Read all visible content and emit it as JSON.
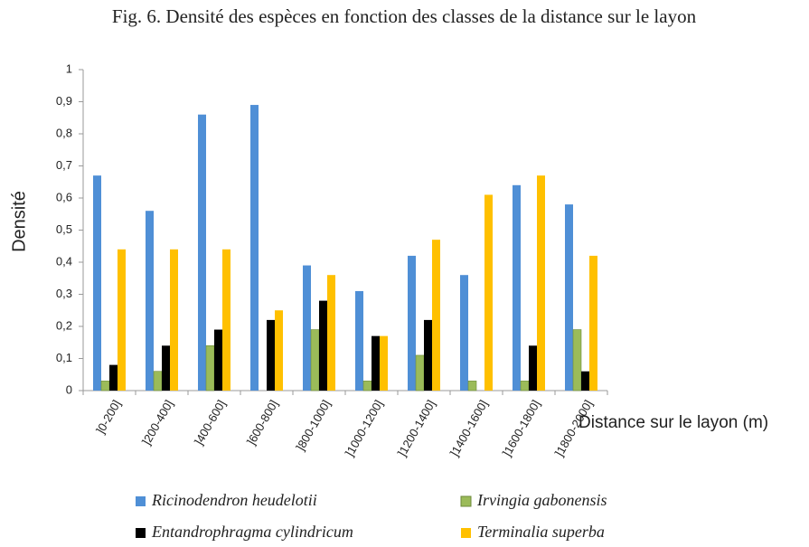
{
  "chart_data": {
    "type": "bar",
    "title": "Fig. 6. Densité des espèces en fonction des classes de la distance sur le layon",
    "y_label": "Densité",
    "x_label": "Distance sur le layon (m)",
    "categories": [
      "]0-200]",
      "]200-400]",
      "]400-600]",
      "]600-800]",
      "]800-1000]",
      "]1000-1200]",
      "]1200-1400]",
      "]1400-1600]",
      "]1600-1800]",
      "]1800-2000]"
    ],
    "series": [
      {
        "name": "Ricinodendron heudelotii",
        "color": "#4f8fd6",
        "values": [
          0.67,
          0.56,
          0.86,
          0.89,
          0.39,
          0.31,
          0.42,
          0.36,
          0.64,
          0.58
        ]
      },
      {
        "name": "Irvingia gabonensis",
        "color": "#9bbb59",
        "values": [
          0.03,
          0.06,
          0.14,
          0,
          0.19,
          0.03,
          0.11,
          0.03,
          0.03,
          0.19
        ]
      },
      {
        "name": "Entandrophragma cylindricum",
        "color": "#000000",
        "values": [
          0.08,
          0.14,
          0.19,
          0.22,
          0.28,
          0.17,
          0.22,
          0,
          0.14,
          0.06
        ]
      },
      {
        "name": "Terminalia superba",
        "color": "#ffc000",
        "values": [
          0.44,
          0.44,
          0.44,
          0.25,
          0.36,
          0.17,
          0.47,
          0.61,
          0.67,
          0.42
        ]
      }
    ],
    "ylim": [
      0,
      1
    ],
    "yticks": [
      0,
      {
        "value": 0.1,
        "label": "0,1"
      },
      {
        "value": 0.2,
        "label": "0,2"
      },
      {
        "value": 0.3,
        "label": "0,3"
      },
      {
        "value": 0.4,
        "label": "0,4"
      },
      {
        "value": 0.5,
        "label": "0,5"
      },
      {
        "value": 0.6,
        "label": "0,6"
      },
      {
        "value": 0.7,
        "label": "0,7"
      },
      {
        "value": 0.8,
        "label": "0,8"
      },
      {
        "value": 0.9,
        "label": "0,9"
      },
      1
    ],
    "grid": false
  }
}
